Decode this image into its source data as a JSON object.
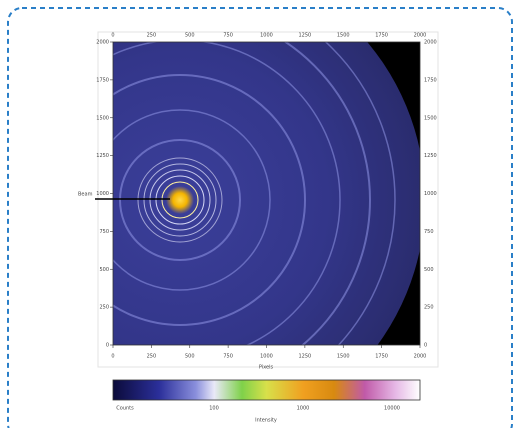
{
  "image": {
    "beam_label": "Beam",
    "x_label": "Pixels",
    "x_ticks": [
      0,
      250,
      500,
      750,
      1000,
      1250,
      1500,
      1750,
      2000
    ],
    "y_ticks": [
      2000,
      1750,
      1500,
      1250,
      1000,
      750,
      500,
      250,
      0
    ]
  },
  "colorbar": {
    "labels": [
      "Counts",
      "100",
      "1000",
      "10000"
    ],
    "title": "Intensity"
  }
}
